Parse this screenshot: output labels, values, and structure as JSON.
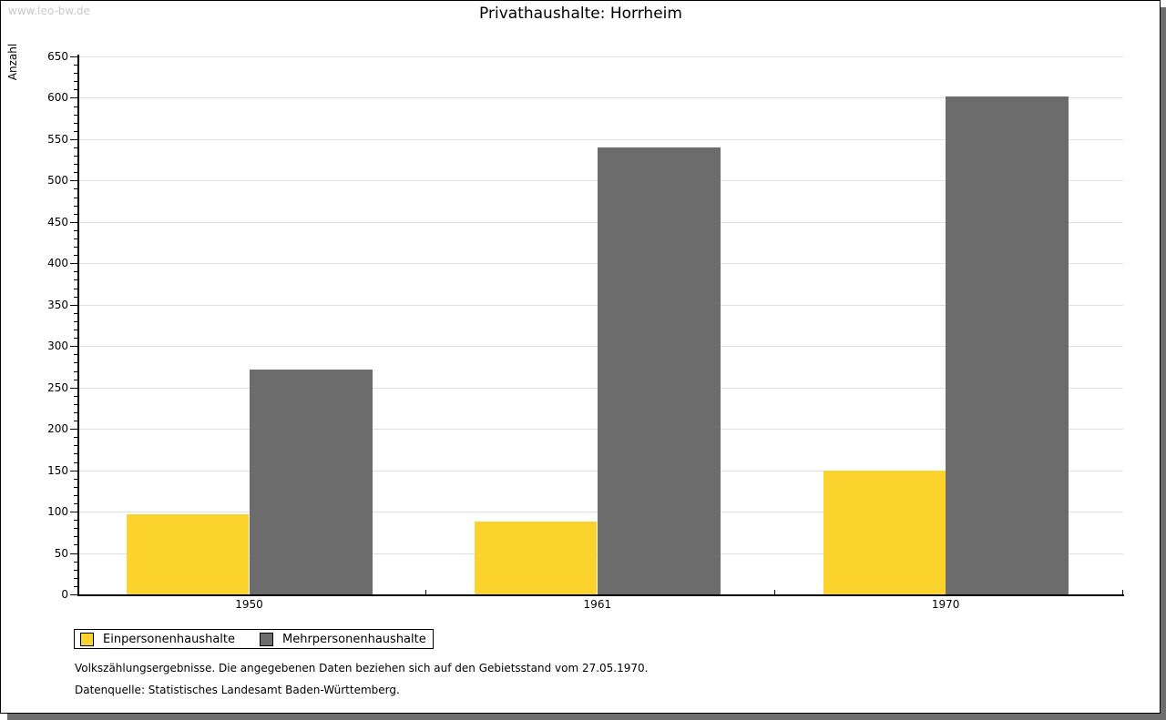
{
  "watermark": "www.leo-bw.de",
  "title": "Privathaushalte: Horrheim",
  "colors": {
    "bar_yellow": "#FCD32D",
    "bar_gray": "#6C6C6C",
    "gridline": "#E0E0E0",
    "watermark_text": "#C9C9C9",
    "shadow": "#6E6E6E"
  },
  "chart_data": {
    "type": "bar",
    "title": "Privathaushalte: Horrheim",
    "xlabel": "",
    "ylabel": "Anzahl",
    "categories": [
      "1950",
      "1961",
      "1970"
    ],
    "series": [
      {
        "name": "Einpersonenhaushalte",
        "color": "#FCD32D",
        "values": [
          97,
          88,
          150
        ]
      },
      {
        "name": "Mehrpersonenhaushalte",
        "color": "#6C6C6C",
        "values": [
          272,
          540,
          602
        ]
      }
    ],
    "ylim": [
      0,
      650
    ],
    "y_major_step": 50,
    "y_minor_step": 10,
    "grid": true,
    "legend_position": "bottom-left"
  },
  "footer": {
    "line1": "Volkszählungsergebnisse. Die angegebenen Daten beziehen sich auf den Gebietsstand vom 27.05.1970.",
    "line2": "Datenquelle: Statistisches Landesamt Baden-Württemberg."
  }
}
